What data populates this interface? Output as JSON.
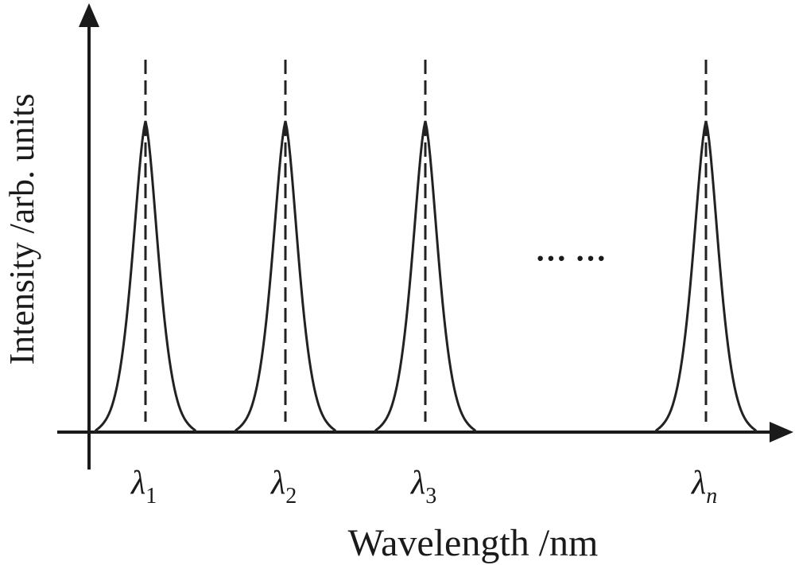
{
  "axes": {
    "y_label": "Intensity /arb. units",
    "x_label": "Wavelength /nm"
  },
  "peaks": [
    {
      "symbol": "λ",
      "subscript": "1"
    },
    {
      "symbol": "λ",
      "subscript": "2"
    },
    {
      "symbol": "λ",
      "subscript": "3"
    },
    {
      "symbol": "λ",
      "subscript": "n"
    }
  ],
  "ellipsis": "··· ···"
}
